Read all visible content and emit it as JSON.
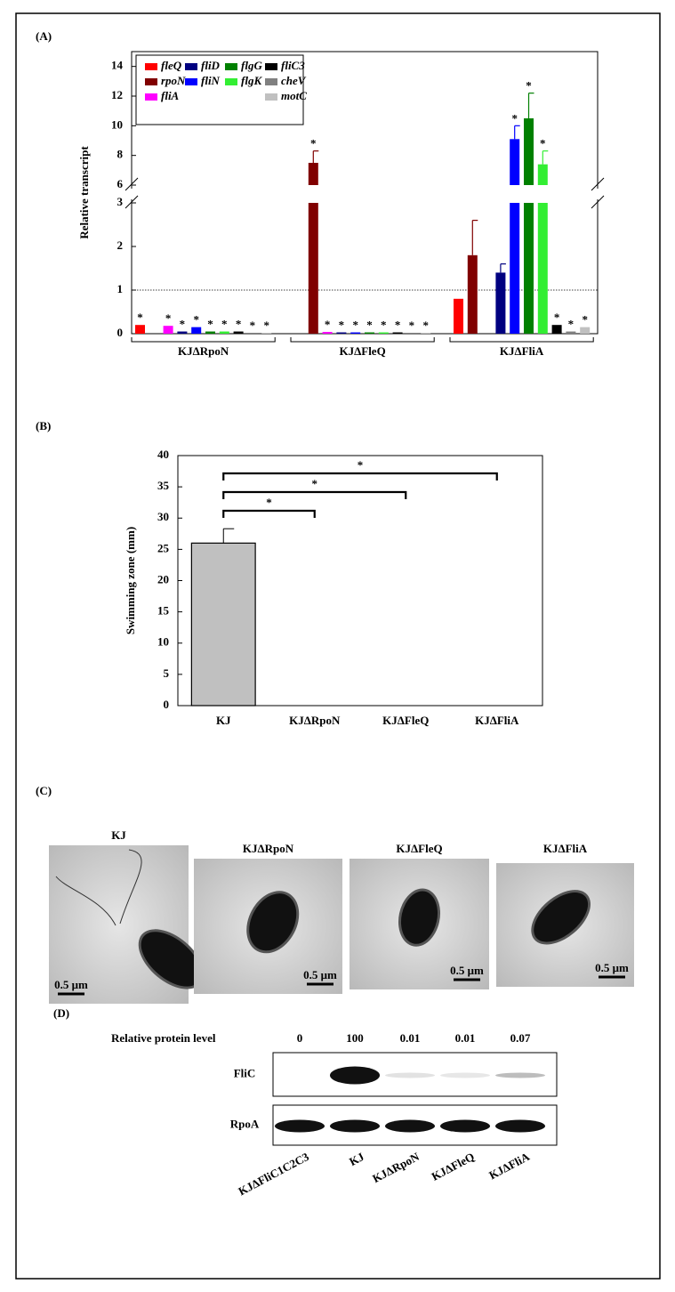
{
  "chart_data": [
    {
      "type": "bar",
      "panel": "(A)",
      "ylabel": "Relative transcript",
      "categories": [
        "KJΔRpoN",
        "KJΔFleQ",
        "KJΔFliA"
      ],
      "series": [
        {
          "name": "fleQ",
          "color": "#ff0000",
          "values": [
            0.2,
            null,
            0.8
          ],
          "errors": [
            null,
            null,
            null
          ],
          "significance": [
            "*",
            null,
            null
          ]
        },
        {
          "name": "rpoN",
          "color": "#800000",
          "values": [
            null,
            7.5,
            1.8
          ],
          "errors": [
            null,
            0.8,
            0.8
          ],
          "significance": [
            null,
            "*",
            null
          ]
        },
        {
          "name": "fliA",
          "color": "#ff00ff",
          "values": [
            0.18,
            0.04,
            null
          ],
          "errors": [
            null,
            null,
            null
          ],
          "significance": [
            "*",
            "*",
            null
          ]
        },
        {
          "name": "fliD",
          "color": "#000080",
          "values": [
            0.05,
            0.03,
            1.4
          ],
          "errors": [
            null,
            null,
            0.2
          ],
          "significance": [
            "*",
            "*",
            null
          ]
        },
        {
          "name": "fliN",
          "color": "#0000ff",
          "values": [
            0.15,
            0.03,
            9.1
          ],
          "errors": [
            null,
            null,
            0.9
          ],
          "significance": [
            "*",
            "*",
            "*"
          ]
        },
        {
          "name": "flgG",
          "color": "#008000",
          "values": [
            0.05,
            0.03,
            10.5
          ],
          "errors": [
            null,
            null,
            1.7
          ],
          "significance": [
            "*",
            "*",
            "*"
          ]
        },
        {
          "name": "flgK",
          "color": "#33ee33",
          "values": [
            0.05,
            0.03,
            7.4
          ],
          "errors": [
            null,
            null,
            0.9
          ],
          "significance": [
            "*",
            "*",
            "*"
          ]
        },
        {
          "name": "fliC3",
          "color": "#000000",
          "values": [
            0.05,
            0.03,
            0.2
          ],
          "errors": [
            null,
            null,
            null
          ],
          "significance": [
            "*",
            "*",
            "*"
          ]
        },
        {
          "name": "cheV",
          "color": "#808080",
          "values": [
            0.02,
            0.02,
            0.05
          ],
          "errors": [
            null,
            null,
            null
          ],
          "significance": [
            "*",
            "*",
            "*"
          ]
        },
        {
          "name": "motC",
          "color": "#c0c0c0",
          "values": [
            0.02,
            0.02,
            0.15
          ],
          "errors": [
            null,
            null,
            null
          ],
          "significance": [
            "*",
            "*",
            "*"
          ]
        }
      ],
      "ylim": [
        0,
        15
      ],
      "ybreak": [
        3,
        6
      ],
      "yticks": [
        0,
        1,
        2,
        3,
        6,
        8,
        10,
        12,
        14
      ],
      "reference_line": 1,
      "legend": "upper left"
    },
    {
      "type": "bar",
      "panel": "(B)",
      "ylabel": "Swimming zone (mm)",
      "categories": [
        "KJ",
        "KJΔRpoN",
        "KJΔFleQ",
        "KJΔFliA"
      ],
      "values": [
        26,
        0,
        0,
        0
      ],
      "errors": [
        2.3,
        null,
        null,
        null
      ],
      "color": "#c0c0c0",
      "ylim": [
        0,
        40
      ],
      "yticks": [
        0,
        5,
        10,
        15,
        20,
        25,
        30,
        35,
        40
      ],
      "comparisons": [
        {
          "from": 0,
          "to": 1,
          "label": "*"
        },
        {
          "from": 0,
          "to": 2,
          "label": "*"
        },
        {
          "from": 0,
          "to": 3,
          "label": "*"
        }
      ]
    }
  ],
  "panel_c": {
    "label": "(C)",
    "images": [
      {
        "title": "KJ",
        "scale": "0.5 μm"
      },
      {
        "title": "KJΔRpoN",
        "scale": "0.5 μm"
      },
      {
        "title": "KJΔFleQ",
        "scale": "0.5 μm"
      },
      {
        "title": "KJΔFliA",
        "scale": "0.5 μm"
      }
    ]
  },
  "panel_d": {
    "label": "(D)",
    "row_title": "Relative protein level",
    "levels": [
      0,
      100,
      0.01,
      0.01,
      0.07
    ],
    "strains": [
      "KJΔFliC1C2C3",
      "KJ",
      "KJΔRpoN",
      "KJΔFleQ",
      "KJΔFliA"
    ],
    "blots": [
      "FliC",
      "RpoA"
    ]
  }
}
